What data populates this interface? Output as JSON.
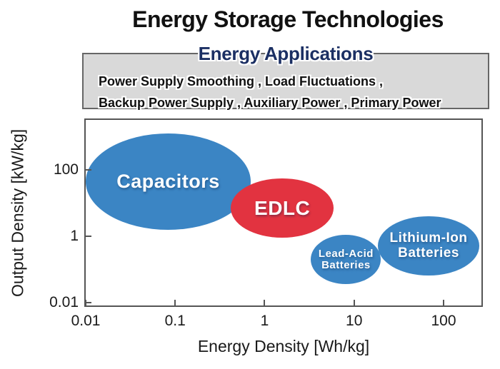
{
  "title": "Energy Storage Technologies",
  "applications_box": {
    "heading": "Energy Applications",
    "lines": [
      "Power Supply Smoothing , Load Fluctuations ,",
      "Backup Power Supply , Auxiliary Power , Primary Power"
    ]
  },
  "colors": {
    "box_bg": "#d9d9d9",
    "box_border": "#666666",
    "heading": "#1b2f63",
    "axis": "#555555",
    "text": "#1a1a1a",
    "halo": "#ffffff",
    "bubble_blue": "#3b85c4",
    "bubble_red": "#e23340"
  },
  "chart_data": {
    "type": "scatter",
    "variant": "bubble-regions",
    "title": "Energy Storage Technologies",
    "xlabel": "Energy Density [Wh/kg]",
    "ylabel": "Output Density [kW/kg]",
    "x_scale": "log",
    "y_scale": "log",
    "xlim": [
      0.01,
      265
    ],
    "ylim": [
      0.0082,
      3300
    ],
    "x_ticks": [
      0.01,
      0.1,
      1,
      10,
      100
    ],
    "x_tick_labels": [
      "0.01",
      "0.1",
      "1",
      "10",
      "100"
    ],
    "y_ticks": [
      100,
      1,
      0.01
    ],
    "y_tick_labels": [
      "100",
      "1",
      "0.01"
    ],
    "grid": false,
    "legend": "none",
    "regions": [
      {
        "name": "Capacitors",
        "label_lines": [
          "Capacitors"
        ],
        "color": "#3b85c4",
        "x_range": [
          0.01,
          0.7
        ],
        "y_range": [
          1.6,
          1300
        ],
        "center": {
          "x": 0.08,
          "y": 45
        },
        "font_px": 27
      },
      {
        "name": "EDLC",
        "label_lines": [
          "EDLC"
        ],
        "color": "#e23340",
        "x_range": [
          0.42,
          5.9
        ],
        "y_range": [
          0.9,
          55
        ],
        "center": {
          "x": 1.6,
          "y": 7
        },
        "font_px": 28
      },
      {
        "name": "Lead-Acid Batteries",
        "label_lines": [
          "Lead-Acid",
          "Batteries"
        ],
        "color": "#3b85c4",
        "x_range": [
          3.3,
          20
        ],
        "y_range": [
          0.036,
          1.1
        ],
        "center": {
          "x": 8,
          "y": 0.2
        },
        "font_px": 15
      },
      {
        "name": "Lithium-Ion Batteries",
        "label_lines": [
          "Lithium-Ion",
          "Batteries"
        ],
        "color": "#3b85c4",
        "x_range": [
          18.5,
          250
        ],
        "y_range": [
          0.065,
          4.0
        ],
        "center": {
          "x": 68,
          "y": 0.5
        },
        "font_px": 19
      }
    ]
  }
}
